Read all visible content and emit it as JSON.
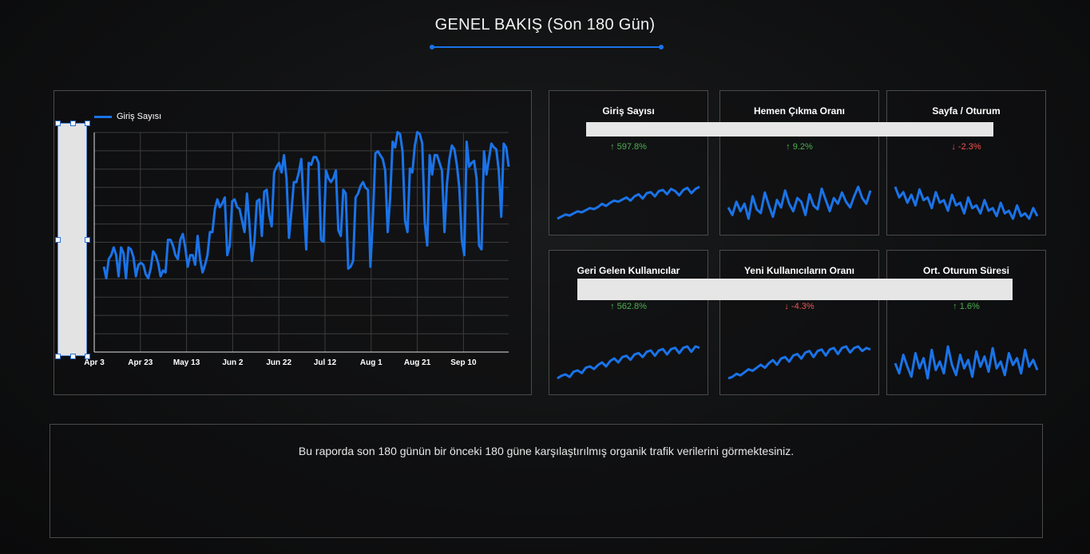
{
  "page": {
    "title": "GENEL BAKIŞ (Son 180 Gün)",
    "description": "Bu raporda son 180 günün bir önceki 180 güne karşılaştırılmış organik trafik verilerini görmektesiniz."
  },
  "colors": {
    "accent": "#1a73e8",
    "up": "#4caf50",
    "down": "#ef5350",
    "background": "#0e0f10",
    "panel_border": "#4a4a4a"
  },
  "chart_data": {
    "type": "line",
    "legend": "Giriş Sayısı",
    "legend_position": "top-left",
    "grid": true,
    "x_ticks": [
      "Apr 3",
      "Apr 23",
      "May 13",
      "Jun 2",
      "Jun 22",
      "Jul 12",
      "Aug 1",
      "Aug 21",
      "Sep 10"
    ],
    "series": [
      {
        "name": "Giriş Sayısı",
        "values": [
          34,
          28,
          38,
          40,
          44,
          40,
          29,
          44,
          41,
          28,
          44,
          43,
          39,
          29,
          35,
          36,
          35,
          30,
          28,
          33,
          42,
          40,
          36,
          29,
          32,
          31,
          48,
          48,
          45,
          40,
          38,
          48,
          51,
          44,
          34,
          40,
          40,
          35,
          50,
          38,
          31,
          35,
          40,
          52,
          52,
          64,
          69,
          65,
          67,
          70,
          40,
          45,
          68,
          69,
          65,
          64,
          58,
          52,
          72,
          56,
          37,
          47,
          68,
          69,
          50,
          73,
          74,
          61,
          55,
          83,
          86,
          88,
          83,
          92,
          80,
          49,
          63,
          78,
          78,
          83,
          90,
          65,
          43,
          88,
          87,
          91,
          91,
          88,
          48,
          47,
          84,
          80,
          78,
          80,
          84,
          53,
          50,
          74,
          72,
          33,
          34,
          37,
          70,
          72,
          76,
          78,
          75,
          74,
          34,
          60,
          93,
          94,
          92,
          90,
          84,
          52,
          70,
          99,
          96,
          104,
          103,
          94,
          58,
          52,
          85,
          83,
          97,
          104,
          103,
          98,
          57,
          45,
          92,
          82,
          92,
          92,
          88,
          84,
          52,
          77,
          90,
          97,
          95,
          87,
          75,
          48,
          40,
          99,
          86,
          88,
          89,
          80,
          45,
          43,
          94,
          82,
          90,
          98,
          96,
          95,
          84,
          60,
          98,
          96,
          86
        ]
      }
    ]
  },
  "scorecards": [
    {
      "label": "Giriş Sayısı",
      "delta": "597.8%",
      "direction": "up",
      "spark": [
        10,
        12,
        14,
        13,
        15,
        17,
        16,
        18,
        20,
        19,
        21,
        24,
        22,
        25,
        27,
        26,
        28,
        30,
        27,
        31,
        33,
        29,
        34,
        35,
        31,
        36,
        37,
        33,
        38,
        36,
        32,
        37,
        39,
        34,
        38,
        40
      ]
    },
    {
      "label": "Hemen Çıkma Oranı",
      "delta": "9.2%",
      "direction": "up",
      "spark": [
        22,
        18,
        25,
        20,
        24,
        16,
        28,
        21,
        19,
        30,
        23,
        17,
        26,
        22,
        31,
        24,
        20,
        27,
        25,
        18,
        29,
        23,
        21,
        32,
        26,
        20,
        27,
        24,
        30,
        25,
        22,
        28,
        33,
        27,
        24,
        31
      ]
    },
    {
      "label": "Sayfa / Oturum",
      "delta": "-2.3%",
      "direction": "down",
      "spark": [
        40,
        36,
        38,
        34,
        37,
        33,
        39,
        35,
        36,
        32,
        38,
        34,
        35,
        31,
        37,
        33,
        34,
        30,
        36,
        32,
        33,
        30,
        35,
        31,
        32,
        29,
        34,
        30,
        31,
        28,
        33,
        29,
        30,
        28,
        32,
        29
      ]
    },
    {
      "label": "Geri Gelen Kullanıcılar",
      "delta": "562.8%",
      "direction": "up",
      "spark": [
        10,
        12,
        13,
        11,
        15,
        16,
        14,
        18,
        19,
        17,
        20,
        22,
        19,
        23,
        25,
        22,
        26,
        27,
        24,
        28,
        29,
        26,
        30,
        31,
        27,
        31,
        32,
        28,
        32,
        33,
        29,
        33,
        34,
        30,
        34,
        33
      ]
    },
    {
      "label": "Yeni Kullanıcıların Oranı",
      "delta": "-4.3%",
      "direction": "down",
      "spark": [
        10,
        11,
        13,
        12,
        14,
        16,
        15,
        17,
        19,
        17,
        20,
        22,
        19,
        23,
        24,
        21,
        25,
        26,
        23,
        27,
        28,
        24,
        28,
        29,
        25,
        29,
        30,
        26,
        30,
        31,
        27,
        30,
        31,
        28,
        30,
        29
      ]
    },
    {
      "label": "Ort. Oturum Süresi",
      "delta": "1.6%",
      "direction": "up",
      "spark": [
        30,
        24,
        35,
        28,
        22,
        36,
        27,
        33,
        21,
        38,
        26,
        31,
        24,
        40,
        29,
        23,
        35,
        27,
        32,
        22,
        37,
        28,
        34,
        25,
        39,
        27,
        31,
        23,
        36,
        29,
        33,
        24,
        38,
        28,
        32,
        26
      ]
    }
  ]
}
